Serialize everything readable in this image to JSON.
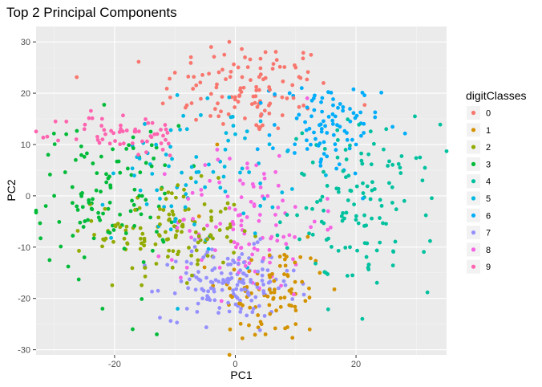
{
  "chart_data": {
    "type": "scatter",
    "title": "Top 2 Principal Components",
    "xlabel": "PC1",
    "ylabel": "PC2",
    "xlim": [
      -33,
      35
    ],
    "ylim": [
      -31,
      33
    ],
    "x_ticks": [
      -20,
      0,
      20
    ],
    "y_ticks": [
      -30,
      -20,
      -10,
      0,
      10,
      20,
      30
    ],
    "grid": true,
    "legend": {
      "title": "digitClasses",
      "placement": "right"
    },
    "series": [
      {
        "name": "0",
        "color": "#F8766D",
        "center": [
          2,
          21
        ],
        "spread": [
          7,
          4.5
        ],
        "count": 110,
        "points": [
          [
            -4,
            29
          ],
          [
            -1,
            30
          ],
          [
            5,
            28
          ],
          [
            -10,
            24
          ],
          [
            10,
            25
          ],
          [
            -2,
            14
          ],
          [
            4,
            13
          ],
          [
            -12,
            18
          ],
          [
            12,
            17
          ]
        ]
      },
      {
        "name": "1",
        "color": "#D39200",
        "center": [
          6,
          -19
        ],
        "spread": [
          4.5,
          5
        ],
        "count": 85,
        "points": [
          [
            -3,
            10
          ],
          [
            -6,
            -4
          ],
          [
            12,
            -8
          ],
          [
            5,
            -27
          ],
          [
            10,
            -25
          ],
          [
            14,
            -15
          ]
        ]
      },
      {
        "name": "2",
        "color": "#93AA00",
        "center": [
          -11,
          -7
        ],
        "spread": [
          6,
          4.5
        ],
        "count": 120,
        "points": [
          [
            -18,
            -6
          ],
          [
            -2,
            -13
          ],
          [
            -8,
            -17
          ],
          [
            -15,
            -14
          ],
          [
            -4,
            -3
          ]
        ]
      },
      {
        "name": "3",
        "color": "#00BA38",
        "center": [
          -21,
          0
        ],
        "spread": [
          6,
          7
        ],
        "count": 110,
        "points": [
          [
            -31,
            8
          ],
          [
            -30,
            0
          ],
          [
            -28,
            12
          ],
          [
            -17,
            -26
          ],
          [
            -13,
            -27
          ],
          [
            -25,
            -12
          ],
          [
            -22,
            -22
          ]
        ]
      },
      {
        "name": "4",
        "color": "#00C19F",
        "center": [
          21,
          -2
        ],
        "spread": [
          6,
          8
        ],
        "count": 125,
        "points": [
          [
            31,
            3
          ],
          [
            28,
            -1
          ],
          [
            25,
            13
          ],
          [
            22,
            -14
          ],
          [
            15,
            -15
          ],
          [
            19,
            -10
          ]
        ]
      },
      {
        "name": "5",
        "color": "#00B9E3",
        "center": [
          -6,
          5
        ],
        "spread": [
          7,
          7
        ],
        "count": 80,
        "points": [
          [
            -15,
            14
          ],
          [
            -8,
            13
          ],
          [
            0,
            12
          ],
          [
            2,
            -14
          ],
          [
            -10,
            -5
          ]
        ]
      },
      {
        "name": "6",
        "color": "#00ADFA",
        "center": [
          15,
          13
        ],
        "spread": [
          4.5,
          4.5
        ],
        "count": 90,
        "points": [
          [
            9,
            20
          ],
          [
            11,
            21
          ],
          [
            20,
            10
          ],
          [
            18,
            5
          ],
          [
            13,
            19
          ]
        ]
      },
      {
        "name": "7",
        "color": "#9590FF",
        "center": [
          -1,
          -17
        ],
        "spread": [
          5.5,
          3.5
        ],
        "count": 140,
        "points": [
          [
            -8,
            -22
          ],
          [
            6,
            -12
          ],
          [
            -10,
            -19
          ],
          [
            3,
            -22
          ]
        ]
      },
      {
        "name": "8",
        "color": "#F564E3",
        "center": [
          2,
          -5
        ],
        "spread": [
          6,
          7
        ],
        "count": 110,
        "points": [
          [
            -3,
            9
          ],
          [
            -5,
            6
          ],
          [
            8,
            -8
          ],
          [
            4,
            -18
          ],
          [
            -8,
            -14
          ]
        ]
      },
      {
        "name": "9",
        "color": "#FF64B0",
        "center": [
          -18,
          12
        ],
        "spread": [
          5,
          2.2
        ],
        "count": 55,
        "points": [
          [
            -25,
            13
          ],
          [
            -22,
            11
          ],
          [
            -12,
            9
          ],
          [
            -15,
            14
          ]
        ]
      }
    ]
  }
}
